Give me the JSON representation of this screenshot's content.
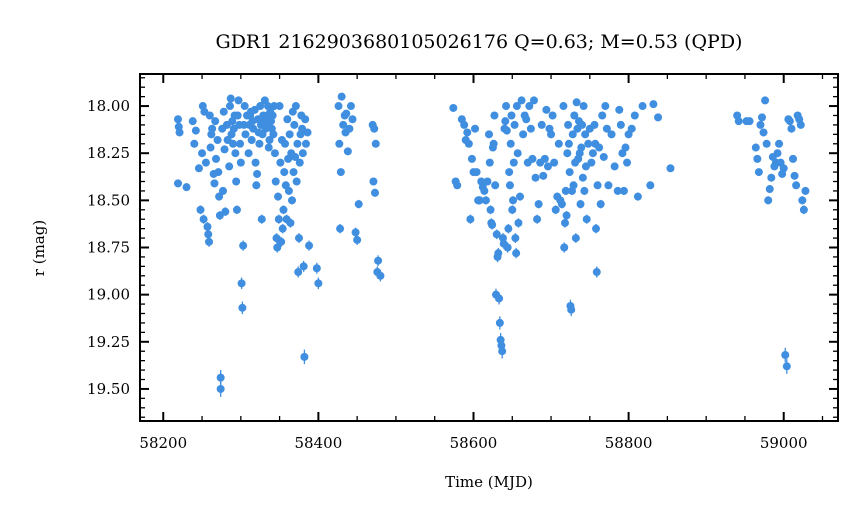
{
  "chart_data": {
    "type": "scatter",
    "title": "GDR1 2162903680105026176  Q=0.63; M=0.53 (QPD)",
    "xlabel": "Time (MJD)",
    "ylabel": "r (mag)",
    "xlim": [
      58170,
      59070
    ],
    "ylim": [
      19.67,
      17.83
    ],
    "y_inverted": true,
    "xticks": [
      "58200",
      "58400",
      "58600",
      "58800",
      "59000"
    ],
    "yticks": [
      "18.00",
      "18.25",
      "18.50",
      "18.75",
      "19.00",
      "19.25",
      "19.50"
    ],
    "xtick_values": [
      58200,
      58400,
      58600,
      58800,
      59000
    ],
    "ytick_values": [
      18.0,
      18.25,
      18.5,
      18.75,
      19.0,
      19.25,
      19.5
    ],
    "grid": false,
    "marker_color": "#3f8ee0",
    "error_color": "#3f8ee0",
    "points": [
      [
        58219,
        18.07
      ],
      [
        58220,
        18.11
      ],
      [
        58221,
        18.14
      ],
      [
        58219,
        18.41
      ],
      [
        58230,
        18.43
      ],
      [
        58238,
        18.08
      ],
      [
        58240,
        18.2
      ],
      [
        58242,
        18.13
      ],
      [
        58246,
        18.33
      ],
      [
        58248,
        18.55
      ],
      [
        58250,
        18.25
      ],
      [
        58251,
        18.0
      ],
      [
        58252,
        18.6
      ],
      [
        58253,
        18.03
      ],
      [
        58255,
        18.3
      ],
      [
        58257,
        18.64
      ],
      [
        58258,
        18.68
      ],
      [
        58259,
        18.72
      ],
      [
        58260,
        18.05
      ],
      [
        58261,
        18.22
      ],
      [
        58262,
        18.15
      ],
      [
        58263,
        18.12
      ],
      [
        58265,
        18.36
      ],
      [
        58266,
        18.41
      ],
      [
        58267,
        18.08
      ],
      [
        58268,
        18.28
      ],
      [
        58270,
        18.18
      ],
      [
        58271,
        18.35
      ],
      [
        58272,
        18.48
      ],
      [
        58273,
        18.58
      ],
      [
        58274,
        19.44
      ],
      [
        58274,
        19.5
      ],
      [
        58276,
        18.12
      ],
      [
        58277,
        18.45
      ],
      [
        58278,
        18.03
      ],
      [
        58279,
        18.23
      ],
      [
        58280,
        18.56
      ],
      [
        58282,
        18.1
      ],
      [
        58283,
        18.18
      ],
      [
        58285,
        18.32
      ],
      [
        58286,
        18.0
      ],
      [
        58287,
        17.96
      ],
      [
        58288,
        18.15
      ],
      [
        58289,
        18.08
      ],
      [
        58290,
        18.2
      ],
      [
        58291,
        18.12
      ],
      [
        58292,
        18.05
      ],
      [
        58293,
        18.25
      ],
      [
        58294,
        18.4
      ],
      [
        58295,
        18.55
      ],
      [
        58296,
        18.05
      ],
      [
        58297,
        17.97
      ],
      [
        58298,
        18.1
      ],
      [
        58299,
        18.2
      ],
      [
        58300,
        18.3
      ],
      [
        58301,
        18.94
      ],
      [
        58302,
        19.07
      ],
      [
        58303,
        18.74
      ],
      [
        58304,
        18.1
      ],
      [
        58305,
        18.0
      ],
      [
        58306,
        18.15
      ],
      [
        58308,
        18.05
      ],
      [
        58310,
        18.25
      ],
      [
        58311,
        18.1
      ],
      [
        58312,
        18.05
      ],
      [
        58313,
        18.03
      ],
      [
        58314,
        18.18
      ],
      [
        58315,
        18.08
      ],
      [
        58316,
        18.12
      ],
      [
        58318,
        18.02
      ],
      [
        58319,
        18.3
      ],
      [
        58320,
        18.42
      ],
      [
        58321,
        18.36
      ],
      [
        58322,
        18.07
      ],
      [
        58323,
        18.14
      ],
      [
        58324,
        18.2
      ],
      [
        58325,
        18.0
      ],
      [
        58326,
        18.1
      ],
      [
        58327,
        18.6
      ],
      [
        58328,
        18.15
      ],
      [
        58329,
        18.05
      ],
      [
        58330,
        18.08
      ],
      [
        58331,
        17.97
      ],
      [
        58332,
        18.12
      ],
      [
        58333,
        18.1
      ],
      [
        58334,
        18.05
      ],
      [
        58335,
        18.0
      ],
      [
        58336,
        18.22
      ],
      [
        58337,
        18.18
      ],
      [
        58338,
        18.03
      ],
      [
        58339,
        18.08
      ],
      [
        58340,
        18.12
      ],
      [
        58341,
        18.05
      ],
      [
        58342,
        18.15
      ],
      [
        58343,
        18.0
      ],
      [
        58344,
        18.25
      ],
      [
        58345,
        18.4
      ],
      [
        58346,
        18.7
      ],
      [
        58347,
        18.75
      ],
      [
        58348,
        18.48
      ],
      [
        58349,
        18.6
      ],
      [
        58350,
        18.0
      ],
      [
        58351,
        18.3
      ],
      [
        58352,
        18.72
      ],
      [
        58353,
        18.18
      ],
      [
        58354,
        18.65
      ],
      [
        58355,
        18.55
      ],
      [
        58356,
        18.35
      ],
      [
        58357,
        18.2
      ],
      [
        58358,
        18.42
      ],
      [
        58359,
        18.6
      ],
      [
        58360,
        18.07
      ],
      [
        58361,
        18.28
      ],
      [
        58362,
        18.45
      ],
      [
        58363,
        18.15
      ],
      [
        58364,
        18.62
      ],
      [
        58365,
        18.25
      ],
      [
        58366,
        18.5
      ],
      [
        58367,
        18.03
      ],
      [
        58368,
        18.35
      ],
      [
        58369,
        18.1
      ],
      [
        58370,
        18.27
      ],
      [
        58371,
        18.0
      ],
      [
        58372,
        18.4
      ],
      [
        58373,
        18.2
      ],
      [
        58374,
        18.88
      ],
      [
        58375,
        18.7
      ],
      [
        58376,
        18.3
      ],
      [
        58377,
        18.15
      ],
      [
        58378,
        18.05
      ],
      [
        58379,
        18.12
      ],
      [
        58380,
        18.25
      ],
      [
        58381,
        18.85
      ],
      [
        58382,
        19.33
      ],
      [
        58383,
        18.07
      ],
      [
        58384,
        18.2
      ],
      [
        58386,
        18.14
      ],
      [
        58388,
        18.74
      ],
      [
        58398,
        18.86
      ],
      [
        58400,
        18.94
      ],
      [
        58426,
        18.0
      ],
      [
        58427,
        18.2
      ],
      [
        58428,
        18.65
      ],
      [
        58429,
        18.35
      ],
      [
        58430,
        17.95
      ],
      [
        58432,
        18.1
      ],
      [
        58434,
        18.05
      ],
      [
        58435,
        18.14
      ],
      [
        58436,
        18.04
      ],
      [
        58438,
        18.24
      ],
      [
        58440,
        18.12
      ],
      [
        58442,
        18.0
      ],
      [
        58444,
        18.07
      ],
      [
        58448,
        18.67
      ],
      [
        58450,
        18.71
      ],
      [
        58452,
        18.52
      ],
      [
        58470,
        18.1
      ],
      [
        58471,
        18.4
      ],
      [
        58472,
        18.12
      ],
      [
        58473,
        18.46
      ],
      [
        58474,
        18.2
      ],
      [
        58476,
        18.88
      ],
      [
        58477,
        18.82
      ],
      [
        58480,
        18.9
      ],
      [
        58574,
        18.01
      ],
      [
        58577,
        18.4
      ],
      [
        58579,
        18.42
      ],
      [
        58585,
        18.07
      ],
      [
        58588,
        18.1
      ],
      [
        58590,
        18.18
      ],
      [
        58592,
        18.14
      ],
      [
        58594,
        18.2
      ],
      [
        58596,
        18.6
      ],
      [
        58598,
        18.28
      ],
      [
        58600,
        18.35
      ],
      [
        58602,
        18.12
      ],
      [
        58604,
        18.35
      ],
      [
        58606,
        18.5
      ],
      [
        58608,
        18.5
      ],
      [
        58610,
        18.4
      ],
      [
        58612,
        18.43
      ],
      [
        58614,
        18.45
      ],
      [
        58616,
        18.5
      ],
      [
        58618,
        18.4
      ],
      [
        58620,
        18.15
      ],
      [
        58621,
        18.3
      ],
      [
        58622,
        18.55
      ],
      [
        58623,
        18.62
      ],
      [
        58624,
        18.63
      ],
      [
        58625,
        18.22
      ],
      [
        58626,
        18.2
      ],
      [
        58627,
        18.05
      ],
      [
        58628,
        18.42
      ],
      [
        58629,
        19.0
      ],
      [
        58630,
        18.68
      ],
      [
        58631,
        18.8
      ],
      [
        58632,
        18.78
      ],
      [
        58633,
        19.02
      ],
      [
        58634,
        19.15
      ],
      [
        58635,
        19.24
      ],
      [
        58636,
        19.27
      ],
      [
        58637,
        19.3
      ],
      [
        58638,
        18.7
      ],
      [
        58639,
        18.73
      ],
      [
        58640,
        18.12
      ],
      [
        58641,
        18.08
      ],
      [
        58642,
        18.0
      ],
      [
        58643,
        18.13
      ],
      [
        58644,
        18.75
      ],
      [
        58645,
        18.65
      ],
      [
        58646,
        18.35
      ],
      [
        58647,
        18.42
      ],
      [
        58648,
        18.2
      ],
      [
        58649,
        18.05
      ],
      [
        58650,
        18.55
      ],
      [
        58651,
        18.5
      ],
      [
        58652,
        18.3
      ],
      [
        58653,
        18.1
      ],
      [
        58654,
        18.7
      ],
      [
        58655,
        18.78
      ],
      [
        58656,
        18.0
      ],
      [
        58657,
        18.25
      ],
      [
        58658,
        18.62
      ],
      [
        58660,
        18.48
      ],
      [
        58662,
        17.97
      ],
      [
        58664,
        18.15
      ],
      [
        58666,
        18.05
      ],
      [
        58668,
        18.07
      ],
      [
        58670,
        18.3
      ],
      [
        58672,
        18.0
      ],
      [
        58674,
        18.12
      ],
      [
        58676,
        18.28
      ],
      [
        58678,
        17.97
      ],
      [
        58680,
        18.38
      ],
      [
        58682,
        18.6
      ],
      [
        58684,
        18.52
      ],
      [
        58686,
        18.3
      ],
      [
        58688,
        18.1
      ],
      [
        58690,
        18.37
      ],
      [
        58692,
        18.28
      ],
      [
        58694,
        18.02
      ],
      [
        58696,
        18.32
      ],
      [
        58698,
        18.12
      ],
      [
        58700,
        18.15
      ],
      [
        58702,
        18.05
      ],
      [
        58704,
        18.3
      ],
      [
        58706,
        18.55
      ],
      [
        58708,
        18.48
      ],
      [
        58710,
        18.2
      ],
      [
        58712,
        18.5
      ],
      [
        58714,
        18.52
      ],
      [
        58716,
        18.0
      ],
      [
        58717,
        18.75
      ],
      [
        58718,
        18.62
      ],
      [
        58719,
        18.45
      ],
      [
        58720,
        18.58
      ],
      [
        58721,
        18.25
      ],
      [
        58722,
        18.1
      ],
      [
        58723,
        18.2
      ],
      [
        58724,
        18.35
      ],
      [
        58725,
        19.06
      ],
      [
        58726,
        19.08
      ],
      [
        58727,
        18.45
      ],
      [
        58728,
        18.15
      ],
      [
        58729,
        18.42
      ],
      [
        58730,
        18.05
      ],
      [
        58731,
        18.3
      ],
      [
        58732,
        18.7
      ],
      [
        58733,
        17.98
      ],
      [
        58734,
        18.12
      ],
      [
        58735,
        18.28
      ],
      [
        58736,
        18.08
      ],
      [
        58737,
        18.25
      ],
      [
        58738,
        18.52
      ],
      [
        58739,
        18.22
      ],
      [
        58740,
        18.1
      ],
      [
        58741,
        18.38
      ],
      [
        58742,
        18.0
      ],
      [
        58743,
        18.45
      ],
      [
        58744,
        18.15
      ],
      [
        58745,
        18.32
      ],
      [
        58746,
        18.6
      ],
      [
        58748,
        18.2
      ],
      [
        58750,
        18.12
      ],
      [
        58752,
        18.3
      ],
      [
        58754,
        18.25
      ],
      [
        58756,
        18.1
      ],
      [
        58757,
        18.2
      ],
      [
        58758,
        18.65
      ],
      [
        58759,
        18.88
      ],
      [
        58760,
        18.42
      ],
      [
        58762,
        18.22
      ],
      [
        58764,
        18.52
      ],
      [
        58766,
        18.05
      ],
      [
        58768,
        18.27
      ],
      [
        58770,
        18.0
      ],
      [
        58772,
        18.12
      ],
      [
        58774,
        18.42
      ],
      [
        58778,
        18.15
      ],
      [
        58782,
        18.32
      ],
      [
        58786,
        18.45
      ],
      [
        58788,
        18.02
      ],
      [
        58790,
        18.1
      ],
      [
        58792,
        18.25
      ],
      [
        58794,
        18.45
      ],
      [
        58796,
        18.22
      ],
      [
        58798,
        18.3
      ],
      [
        58800,
        18.15
      ],
      [
        58804,
        18.12
      ],
      [
        58808,
        18.05
      ],
      [
        58812,
        18.48
      ],
      [
        58818,
        18.0
      ],
      [
        58828,
        18.42
      ],
      [
        58832,
        17.99
      ],
      [
        58838,
        18.06
      ],
      [
        58854,
        18.33
      ],
      [
        58940,
        18.05
      ],
      [
        58942,
        18.08
      ],
      [
        58952,
        18.08
      ],
      [
        58956,
        18.08
      ],
      [
        58964,
        18.22
      ],
      [
        58966,
        18.28
      ],
      [
        58968,
        18.35
      ],
      [
        58970,
        18.1
      ],
      [
        58972,
        18.06
      ],
      [
        58974,
        18.14
      ],
      [
        58976,
        17.97
      ],
      [
        58978,
        18.2
      ],
      [
        58980,
        18.5
      ],
      [
        58982,
        18.44
      ],
      [
        58984,
        18.38
      ],
      [
        58986,
        18.27
      ],
      [
        58988,
        18.32
      ],
      [
        58990,
        18.3
      ],
      [
        58992,
        18.25
      ],
      [
        58994,
        18.2
      ],
      [
        58996,
        18.3
      ],
      [
        58998,
        18.36
      ],
      [
        59000,
        18.33
      ],
      [
        59002,
        19.32
      ],
      [
        59004,
        19.38
      ],
      [
        59006,
        18.07
      ],
      [
        59008,
        18.08
      ],
      [
        59010,
        18.12
      ],
      [
        59012,
        18.28
      ],
      [
        59014,
        18.37
      ],
      [
        59016,
        18.42
      ],
      [
        59018,
        18.05
      ],
      [
        59020,
        18.07
      ],
      [
        59022,
        18.1
      ],
      [
        59024,
        18.5
      ],
      [
        59026,
        18.55
      ],
      [
        59028,
        18.45
      ]
    ]
  }
}
